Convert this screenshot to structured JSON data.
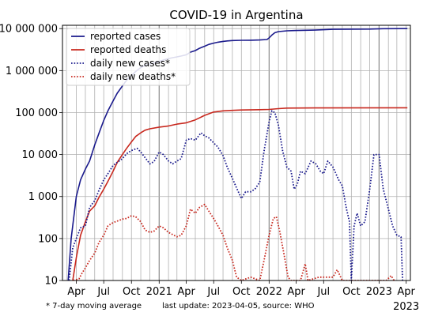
{
  "chart_data": {
    "type": "line",
    "title": "COVID-19 in Argentina",
    "y_scale": "log",
    "ylim": [
      10,
      12000000
    ],
    "xlim": [
      "2020-02-15",
      "2023-04-15"
    ],
    "grid": true,
    "legend_position": "top-left",
    "x_ticks": [
      {
        "date": "2020-04-01",
        "label": "Apr"
      },
      {
        "date": "2020-07-01",
        "label": "Jul"
      },
      {
        "date": "2020-10-01",
        "label": "Oct"
      },
      {
        "date": "2021-01-01",
        "label": "2021"
      },
      {
        "date": "2021-04-01",
        "label": "Apr"
      },
      {
        "date": "2021-07-01",
        "label": "Jul"
      },
      {
        "date": "2021-10-01",
        "label": "Oct"
      },
      {
        "date": "2022-01-01",
        "label": "2022"
      },
      {
        "date": "2022-04-01",
        "label": "Apr"
      },
      {
        "date": "2022-07-01",
        "label": "Jul"
      },
      {
        "date": "2022-10-01",
        "label": "Oct"
      },
      {
        "date": "2023-01-01",
        "label": "2023"
      },
      {
        "date": "2023-04-01",
        "label": "Apr"
      }
    ],
    "x_extra_label": "2023",
    "y_ticks": [
      {
        "value": 10,
        "label": "10"
      },
      {
        "value": 100,
        "label": "100"
      },
      {
        "value": 1000,
        "label": "1 000"
      },
      {
        "value": 10000,
        "label": "10 000"
      },
      {
        "value": 100000,
        "label": "100 000"
      },
      {
        "value": 1000000,
        "label": "1 000 000"
      },
      {
        "value": 10000000,
        "label": "10 000 000"
      }
    ],
    "series": [
      {
        "name": "reported cases",
        "color": "#1a1a8c",
        "style": "solid",
        "points": [
          [
            "2020-03-05",
            10
          ],
          [
            "2020-03-15",
            100
          ],
          [
            "2020-04-01",
            1000
          ],
          [
            "2020-04-15",
            2500
          ],
          [
            "2020-05-01",
            4500
          ],
          [
            "2020-05-15",
            7000
          ],
          [
            "2020-06-01",
            17000
          ],
          [
            "2020-06-15",
            32000
          ],
          [
            "2020-07-01",
            65000
          ],
          [
            "2020-07-15",
            110000
          ],
          [
            "2020-08-01",
            190000
          ],
          [
            "2020-08-15",
            290000
          ],
          [
            "2020-09-01",
            430000
          ],
          [
            "2020-09-15",
            590000
          ],
          [
            "2020-10-01",
            760000
          ],
          [
            "2020-10-15",
            950000
          ],
          [
            "2020-11-01",
            1180000
          ],
          [
            "2020-11-15",
            1320000
          ],
          [
            "2020-12-01",
            1440000
          ],
          [
            "2020-12-15",
            1510000
          ],
          [
            "2021-01-01",
            1640000
          ],
          [
            "2021-01-15",
            1780000
          ],
          [
            "2021-02-01",
            1930000
          ],
          [
            "2021-02-15",
            2030000
          ],
          [
            "2021-03-01",
            2120000
          ],
          [
            "2021-03-15",
            2220000
          ],
          [
            "2021-04-01",
            2380000
          ],
          [
            "2021-04-15",
            2750000
          ],
          [
            "2021-05-01",
            3000000
          ],
          [
            "2021-05-15",
            3400000
          ],
          [
            "2021-06-01",
            3800000
          ],
          [
            "2021-06-15",
            4200000
          ],
          [
            "2021-07-01",
            4500000
          ],
          [
            "2021-07-15",
            4750000
          ],
          [
            "2021-08-01",
            4950000
          ],
          [
            "2021-08-15",
            5080000
          ],
          [
            "2021-09-01",
            5200000
          ],
          [
            "2021-10-01",
            5270000
          ],
          [
            "2021-11-01",
            5300000
          ],
          [
            "2021-12-01",
            5350000
          ],
          [
            "2021-12-25",
            5500000
          ],
          [
            "2022-01-01",
            6000000
          ],
          [
            "2022-01-10",
            7000000
          ],
          [
            "2022-01-20",
            8000000
          ],
          [
            "2022-02-01",
            8500000
          ],
          [
            "2022-03-01",
            8850000
          ],
          [
            "2022-04-01",
            9000000
          ],
          [
            "2022-06-01",
            9200000
          ],
          [
            "2022-08-01",
            9600000
          ],
          [
            "2022-10-01",
            9700000
          ],
          [
            "2022-12-01",
            9750000
          ],
          [
            "2023-01-15",
            9950000
          ],
          [
            "2023-04-05",
            10000000
          ]
        ]
      },
      {
        "name": "reported deaths",
        "color": "#c8281e",
        "style": "solid",
        "points": [
          [
            "2020-03-20",
            10
          ],
          [
            "2020-04-01",
            35
          ],
          [
            "2020-04-15",
            120
          ],
          [
            "2020-05-01",
            250
          ],
          [
            "2020-05-15",
            450
          ],
          [
            "2020-06-01",
            600
          ],
          [
            "2020-06-15",
            950
          ],
          [
            "2020-07-01",
            1500
          ],
          [
            "2020-07-15",
            2300
          ],
          [
            "2020-08-01",
            4000
          ],
          [
            "2020-08-15",
            6500
          ],
          [
            "2020-09-01",
            10000
          ],
          [
            "2020-09-15",
            14000
          ],
          [
            "2020-10-01",
            20000
          ],
          [
            "2020-10-15",
            27000
          ],
          [
            "2020-11-01",
            33000
          ],
          [
            "2020-11-15",
            38000
          ],
          [
            "2020-12-01",
            41000
          ],
          [
            "2021-01-01",
            45000
          ],
          [
            "2021-02-01",
            48000
          ],
          [
            "2021-03-01",
            53000
          ],
          [
            "2021-04-01",
            57000
          ],
          [
            "2021-05-01",
            67000
          ],
          [
            "2021-06-01",
            86000
          ],
          [
            "2021-07-01",
            103000
          ],
          [
            "2021-08-01",
            110000
          ],
          [
            "2021-09-01",
            113000
          ],
          [
            "2021-10-01",
            115000
          ],
          [
            "2021-12-01",
            117000
          ],
          [
            "2022-01-01",
            119000
          ],
          [
            "2022-02-01",
            124000
          ],
          [
            "2022-03-01",
            128000
          ],
          [
            "2022-06-01",
            129000
          ],
          [
            "2023-04-05",
            130000
          ]
        ]
      },
      {
        "name": "daily new cases*",
        "color": "#1a1a8c",
        "style": "dotted",
        "points": [
          [
            "2020-03-08",
            10
          ],
          [
            "2020-03-20",
            60
          ],
          [
            "2020-04-01",
            100
          ],
          [
            "2020-04-15",
            180
          ],
          [
            "2020-05-01",
            200
          ],
          [
            "2020-05-15",
            550
          ],
          [
            "2020-06-01",
            800
          ],
          [
            "2020-06-15",
            1400
          ],
          [
            "2020-07-01",
            2500
          ],
          [
            "2020-07-15",
            3500
          ],
          [
            "2020-08-01",
            5500
          ],
          [
            "2020-08-15",
            6500
          ],
          [
            "2020-09-01",
            8000
          ],
          [
            "2020-09-15",
            10500
          ],
          [
            "2020-10-01",
            12500
          ],
          [
            "2020-10-20",
            14000
          ],
          [
            "2020-11-01",
            11500
          ],
          [
            "2020-11-15",
            8500
          ],
          [
            "2020-12-01",
            6000
          ],
          [
            "2020-12-15",
            6800
          ],
          [
            "2021-01-01",
            11500
          ],
          [
            "2021-01-15",
            10000
          ],
          [
            "2021-02-01",
            7000
          ],
          [
            "2021-02-15",
            6000
          ],
          [
            "2021-03-01",
            7000
          ],
          [
            "2021-03-15",
            8000
          ],
          [
            "2021-04-01",
            22000
          ],
          [
            "2021-04-15",
            24000
          ],
          [
            "2021-05-01",
            22000
          ],
          [
            "2021-05-20",
            33000
          ],
          [
            "2021-06-01",
            28000
          ],
          [
            "2021-06-15",
            25000
          ],
          [
            "2021-07-01",
            19000
          ],
          [
            "2021-07-15",
            15000
          ],
          [
            "2021-08-01",
            9500
          ],
          [
            "2021-08-15",
            5000
          ],
          [
            "2021-09-01",
            2700
          ],
          [
            "2021-09-15",
            1600
          ],
          [
            "2021-10-01",
            900
          ],
          [
            "2021-10-15",
            1300
          ],
          [
            "2021-11-01",
            1300
          ],
          [
            "2021-11-15",
            1500
          ],
          [
            "2021-12-01",
            2200
          ],
          [
            "2021-12-15",
            12000
          ],
          [
            "2022-01-01",
            60000
          ],
          [
            "2022-01-10",
            110000
          ],
          [
            "2022-01-20",
            100000
          ],
          [
            "2022-02-01",
            50000
          ],
          [
            "2022-02-15",
            12000
          ],
          [
            "2022-03-01",
            5000
          ],
          [
            "2022-03-15",
            4000
          ],
          [
            "2022-03-25",
            1500
          ],
          [
            "2022-04-05",
            2000
          ],
          [
            "2022-04-15",
            4000
          ],
          [
            "2022-05-01",
            3500
          ],
          [
            "2022-05-20",
            7000
          ],
          [
            "2022-06-05",
            6000
          ],
          [
            "2022-06-20",
            4000
          ],
          [
            "2022-07-01",
            3500
          ],
          [
            "2022-07-15",
            7000
          ],
          [
            "2022-08-01",
            5000
          ],
          [
            "2022-08-20",
            2500
          ],
          [
            "2022-09-01",
            1800
          ],
          [
            "2022-09-15",
            500
          ],
          [
            "2022-09-25",
            250
          ],
          [
            "2022-10-01",
            10
          ],
          [
            "2022-10-10",
            200
          ],
          [
            "2022-10-20",
            400
          ],
          [
            "2022-11-01",
            200
          ],
          [
            "2022-11-15",
            250
          ],
          [
            "2022-12-01",
            1500
          ],
          [
            "2022-12-15",
            10000
          ],
          [
            "2023-01-01",
            10000
          ],
          [
            "2023-01-15",
            1500
          ],
          [
            "2023-02-01",
            500
          ],
          [
            "2023-02-15",
            200
          ],
          [
            "2023-03-01",
            120
          ],
          [
            "2023-03-15",
            110
          ],
          [
            "2023-03-20",
            10
          ]
        ]
      },
      {
        "name": "daily new deaths*",
        "color": "#c8281e",
        "style": "dotted",
        "points": [
          [
            "2020-03-22",
            10
          ],
          [
            "2020-04-10",
            11
          ],
          [
            "2020-04-20",
            15
          ],
          [
            "2020-05-01",
            20
          ],
          [
            "2020-05-15",
            30
          ],
          [
            "2020-06-01",
            45
          ],
          [
            "2020-06-15",
            80
          ],
          [
            "2020-07-01",
            120
          ],
          [
            "2020-07-15",
            200
          ],
          [
            "2020-08-01",
            240
          ],
          [
            "2020-08-15",
            260
          ],
          [
            "2020-09-01",
            290
          ],
          [
            "2020-09-15",
            300
          ],
          [
            "2020-10-01",
            350
          ],
          [
            "2020-10-15",
            330
          ],
          [
            "2020-11-01",
            250
          ],
          [
            "2020-11-15",
            160
          ],
          [
            "2020-12-01",
            140
          ],
          [
            "2020-12-15",
            150
          ],
          [
            "2021-01-01",
            200
          ],
          [
            "2021-01-15",
            180
          ],
          [
            "2021-02-01",
            140
          ],
          [
            "2021-03-01",
            110
          ],
          [
            "2021-03-15",
            120
          ],
          [
            "2021-04-01",
            200
          ],
          [
            "2021-04-15",
            500
          ],
          [
            "2021-05-01",
            400
          ],
          [
            "2021-05-15",
            550
          ],
          [
            "2021-06-01",
            650
          ],
          [
            "2021-06-15",
            450
          ],
          [
            "2021-07-01",
            300
          ],
          [
            "2021-07-15",
            200
          ],
          [
            "2021-08-01",
            120
          ],
          [
            "2021-08-15",
            60
          ],
          [
            "2021-09-01",
            30
          ],
          [
            "2021-09-15",
            12
          ],
          [
            "2021-10-01",
            10
          ],
          [
            "2021-11-01",
            12
          ],
          [
            "2021-12-01",
            10
          ],
          [
            "2021-12-15",
            30
          ],
          [
            "2022-01-01",
            120
          ],
          [
            "2022-01-15",
            300
          ],
          [
            "2022-01-25",
            330
          ],
          [
            "2022-02-05",
            150
          ],
          [
            "2022-02-20",
            40
          ],
          [
            "2022-03-05",
            12
          ],
          [
            "2022-03-15",
            10
          ],
          [
            "2022-04-15",
            10
          ],
          [
            "2022-05-01",
            25
          ],
          [
            "2022-05-10",
            10
          ],
          [
            "2022-06-15",
            12
          ],
          [
            "2022-08-01",
            12
          ],
          [
            "2022-08-15",
            18
          ],
          [
            "2022-09-01",
            10
          ],
          [
            "2023-01-25",
            10
          ],
          [
            "2023-02-10",
            13
          ],
          [
            "2023-02-20",
            10
          ]
        ]
      }
    ],
    "footer_note": "* 7-day moving average",
    "footer_update": "last update: 2023-04-05, source: WHO"
  }
}
